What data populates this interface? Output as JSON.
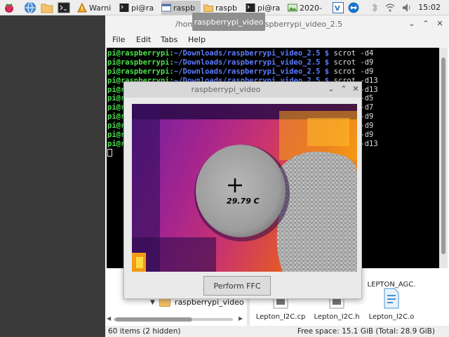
{
  "taskbar": {
    "tasks": [
      {
        "label": "Warni"
      },
      {
        "label": "pi@ra"
      },
      {
        "label": "raspb"
      },
      {
        "label": "raspb"
      },
      {
        "label": "pi@ra"
      },
      {
        "label": "2020-"
      }
    ],
    "clock": "15:02"
  },
  "tooltip": "raspberrypi_video",
  "terminal": {
    "title_path": "/home/pi/Downloads/raspberrypi_video_2.5",
    "menu": [
      "File",
      "Edit",
      "Tabs",
      "Help"
    ],
    "prompt_user": "pi@raspberrypi",
    "prompt_path": "~/Downloads/raspberrypi_video_2.5",
    "commands": [
      "scrot -d4",
      "scrot -d9",
      "scrot -d9",
      "scrot -d13",
      "scrot -d13",
      "scrot -d5",
      "scrot -d7",
      "scrot -d9",
      "scrot -d9",
      "scrot -d9",
      "scrot -d13"
    ]
  },
  "file_manager": {
    "tree_item": "raspberrypi_video",
    "files": [
      "Lepton_I2C.cp",
      "Lepton_I2C.h",
      "Lepton_I2C.o"
    ],
    "partial_label_line1": "LEPTON_AGC.",
    "partial_label_line2": "o",
    "status_left": "60 items (2 hidden)",
    "status_right": "Free space: 15.1 GiB (Total: 28.9 GiB)"
  },
  "video_window": {
    "title": "raspberrypi_video",
    "temperature": "29.79 C",
    "ffc_button": "Perform FFC"
  }
}
